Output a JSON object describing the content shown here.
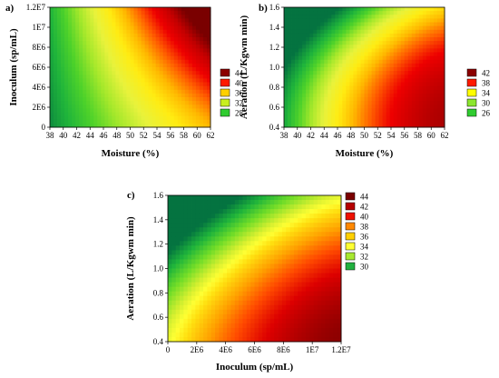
{
  "chart_data": [
    {
      "panel": "a)",
      "type": "heatmap",
      "xlabel": "Moisture (%)",
      "ylabel": "Inoculum (sp/mL)",
      "xlim": [
        38,
        62
      ],
      "ylim": [
        0,
        12000000
      ],
      "x_ticks": [
        {
          "v": 38,
          "label": "38"
        },
        {
          "v": 40,
          "label": "40"
        },
        {
          "v": 42,
          "label": "42"
        },
        {
          "v": 44,
          "label": "44"
        },
        {
          "v": 46,
          "label": "46"
        },
        {
          "v": 48,
          "label": "48"
        },
        {
          "v": 50,
          "label": "50"
        },
        {
          "v": 52,
          "label": "52"
        },
        {
          "v": 54,
          "label": "54"
        },
        {
          "v": 56,
          "label": "56"
        },
        {
          "v": 58,
          "label": "58"
        },
        {
          "v": 60,
          "label": "60"
        },
        {
          "v": 62,
          "label": "62"
        }
      ],
      "y_ticks": [
        {
          "v": 0,
          "label": "0"
        },
        {
          "v": 2000000,
          "label": "2E6"
        },
        {
          "v": 4000000,
          "label": "4E6"
        },
        {
          "v": 6000000,
          "label": "6E6"
        },
        {
          "v": 8000000,
          "label": "8E6"
        },
        {
          "v": 10000000,
          "label": "1E7"
        },
        {
          "v": 12000000,
          "label": "1.2E7"
        }
      ],
      "legend": [
        {
          "label": "44",
          "color": "#8b0000"
        },
        {
          "label": "40",
          "color": "#ff1a00"
        },
        {
          "label": "36",
          "color": "#ffd000"
        },
        {
          "label": "32",
          "color": "#c8ef20"
        },
        {
          "label": "28",
          "color": "#30cc30"
        }
      ],
      "legend_position": "right",
      "z_range": [
        25,
        46
      ],
      "colorscale": [
        [
          25,
          "#047340"
        ],
        [
          28,
          "#1fb43b"
        ],
        [
          30,
          "#4ed22a"
        ],
        [
          32,
          "#a5e82b"
        ],
        [
          34,
          "#e8f23c"
        ],
        [
          36,
          "#ffec12"
        ],
        [
          38,
          "#ffb800"
        ],
        [
          40,
          "#ff5e00"
        ],
        [
          42,
          "#ee0000"
        ],
        [
          44,
          "#c40000"
        ],
        [
          46,
          "#7a0000"
        ]
      ]
    },
    {
      "panel": "b)",
      "type": "heatmap",
      "xlabel": "Moisture (%)",
      "ylabel": "Aeration (L/Kgwm min)",
      "xlim": [
        38,
        62
      ],
      "ylim": [
        0.4,
        1.6
      ],
      "x_ticks": [
        {
          "v": 38,
          "label": "38"
        },
        {
          "v": 40,
          "label": "40"
        },
        {
          "v": 42,
          "label": "42"
        },
        {
          "v": 44,
          "label": "44"
        },
        {
          "v": 46,
          "label": "46"
        },
        {
          "v": 48,
          "label": "48"
        },
        {
          "v": 50,
          "label": "50"
        },
        {
          "v": 52,
          "label": "52"
        },
        {
          "v": 54,
          "label": "54"
        },
        {
          "v": 56,
          "label": "56"
        },
        {
          "v": 58,
          "label": "58"
        },
        {
          "v": 60,
          "label": "60"
        },
        {
          "v": 62,
          "label": "62"
        }
      ],
      "y_ticks": [
        {
          "v": 0.4,
          "label": "0.4"
        },
        {
          "v": 0.6,
          "label": "0.6"
        },
        {
          "v": 0.8,
          "label": "0.8"
        },
        {
          "v": 1.0,
          "label": "1.0"
        },
        {
          "v": 1.2,
          "label": "1.2"
        },
        {
          "v": 1.4,
          "label": "1.4"
        },
        {
          "v": 1.6,
          "label": "1.6"
        }
      ],
      "legend": [
        {
          "label": "42",
          "color": "#8b0000"
        },
        {
          "label": "38",
          "color": "#ff1a00"
        },
        {
          "label": "34",
          "color": "#ffff00"
        },
        {
          "label": "30",
          "color": "#8ce62e"
        },
        {
          "label": "26",
          "color": "#30cc30"
        }
      ],
      "legend_position": "right",
      "z_range": [
        22,
        44
      ],
      "colorscale": [
        [
          22,
          "#047340"
        ],
        [
          25,
          "#1fb43b"
        ],
        [
          27,
          "#4ed22a"
        ],
        [
          29,
          "#a5e82b"
        ],
        [
          31,
          "#e8f23c"
        ],
        [
          33,
          "#ffec12"
        ],
        [
          35,
          "#ffb800"
        ],
        [
          37,
          "#ff5e00"
        ],
        [
          39,
          "#ee0000"
        ],
        [
          41,
          "#c40000"
        ],
        [
          44,
          "#7a0000"
        ]
      ]
    },
    {
      "panel": "c)",
      "type": "heatmap",
      "xlabel": "Inoculum (sp/mL)",
      "ylabel": "Aeration (L/Kgwm min)",
      "xlim": [
        0,
        12000000
      ],
      "ylim": [
        0.4,
        1.6
      ],
      "x_ticks": [
        {
          "v": 0,
          "label": "0"
        },
        {
          "v": 2000000,
          "label": "2E6"
        },
        {
          "v": 4000000,
          "label": "4E6"
        },
        {
          "v": 6000000,
          "label": "6E6"
        },
        {
          "v": 8000000,
          "label": "8E6"
        },
        {
          "v": 10000000,
          "label": "1E7"
        },
        {
          "v": 12000000,
          "label": "1.2E7"
        }
      ],
      "y_ticks": [
        {
          "v": 0.4,
          "label": "0.4"
        },
        {
          "v": 0.6,
          "label": "0.6"
        },
        {
          "v": 0.8,
          "label": "0.8"
        },
        {
          "v": 1.0,
          "label": "1.0"
        },
        {
          "v": 1.2,
          "label": "1.2"
        },
        {
          "v": 1.4,
          "label": "1.4"
        },
        {
          "v": 1.6,
          "label": "1.6"
        }
      ],
      "legend": [
        {
          "label": "44",
          "color": "#7a0000"
        },
        {
          "label": "42",
          "color": "#b50000"
        },
        {
          "label": "40",
          "color": "#ee1100"
        },
        {
          "label": "38",
          "color": "#ff8800"
        },
        {
          "label": "36",
          "color": "#ffd000"
        },
        {
          "label": "34",
          "color": "#ffff33"
        },
        {
          "label": "32",
          "color": "#a8e830"
        },
        {
          "label": "30",
          "color": "#22b040"
        }
      ],
      "legend_position": "right",
      "z_range": [
        28,
        46
      ],
      "colorscale": [
        [
          28,
          "#047340"
        ],
        [
          30,
          "#1fb43b"
        ],
        [
          32,
          "#6fdc28"
        ],
        [
          34,
          "#d8f030"
        ],
        [
          35,
          "#ffff33"
        ],
        [
          36,
          "#ffe010"
        ],
        [
          38,
          "#ffa000"
        ],
        [
          40,
          "#ff4a00"
        ],
        [
          42,
          "#dd0000"
        ],
        [
          44,
          "#a80000"
        ],
        [
          46,
          "#700000"
        ]
      ]
    }
  ]
}
